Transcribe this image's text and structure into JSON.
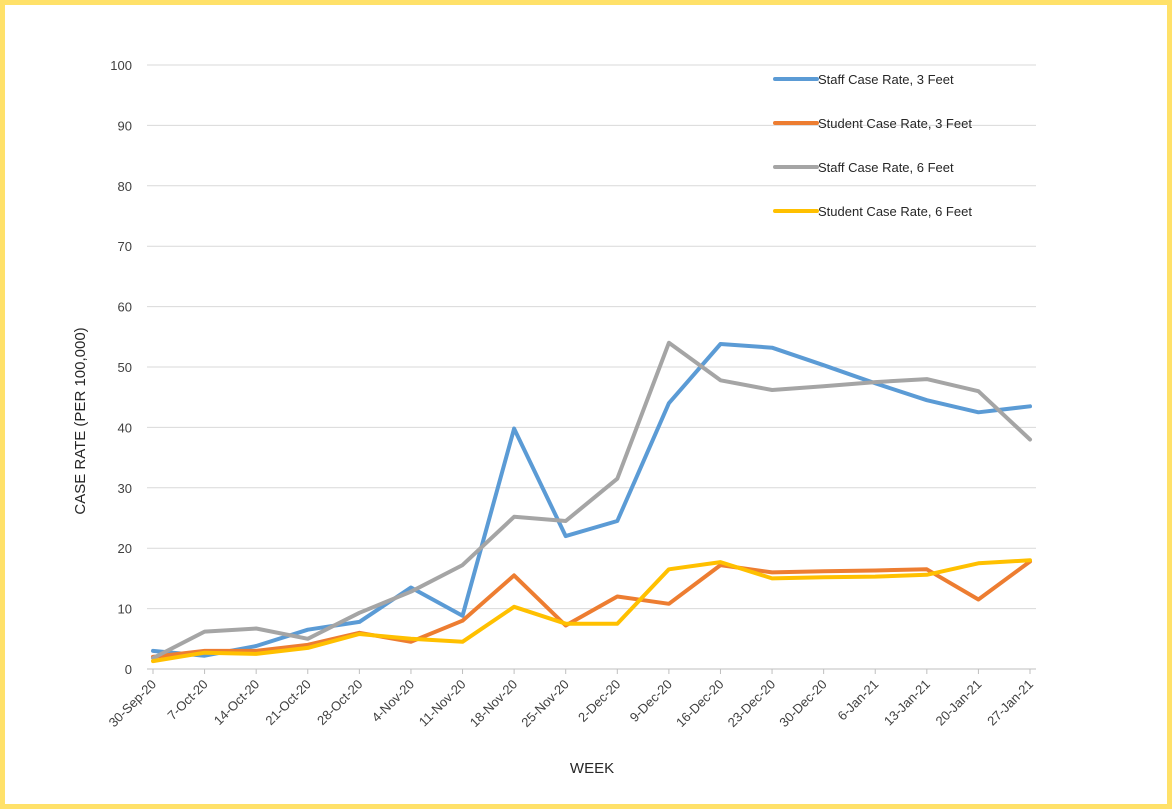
{
  "chart_data": {
    "type": "line",
    "title": "",
    "xlabel": "WEEK",
    "ylabel": "CASE RATE (PER 100,000)",
    "ylim": [
      0,
      100
    ],
    "yticks": [
      "0",
      "10",
      "20",
      "30",
      "40",
      "50",
      "60",
      "70",
      "80",
      "90",
      "100"
    ],
    "grid": true,
    "legend_position": "top-right",
    "categories": [
      "30-Sep-20",
      "7-Oct-20",
      "14-Oct-20",
      "21-Oct-20",
      "28-Oct-20",
      "4-Nov-20",
      "11-Nov-20",
      "18-Nov-20",
      "25-Nov-20",
      "2-Dec-20",
      "9-Dec-20",
      "16-Dec-20",
      "23-Dec-20",
      "30-Dec-20",
      "6-Jan-21",
      "13-Jan-21",
      "20-Jan-21",
      "27-Jan-21"
    ],
    "series": [
      {
        "name": "Staff Case Rate, 3 Feet",
        "color": "#5b9bd5",
        "values": [
          3.0,
          2.2,
          3.8,
          6.5,
          7.8,
          13.5,
          8.8,
          39.8,
          22.0,
          24.5,
          44.0,
          53.8,
          53.2,
          50.3,
          47.3,
          44.5,
          42.5,
          43.5
        ]
      },
      {
        "name": "Student Case Rate, 3 Feet",
        "color": "#ed7d31",
        "values": [
          2.0,
          3.0,
          3.0,
          4.0,
          6.0,
          4.5,
          8.0,
          15.5,
          7.2,
          12.0,
          10.8,
          17.2,
          16.0,
          16.2,
          16.3,
          16.5,
          11.5,
          17.8
        ]
      },
      {
        "name": "Staff Case Rate, 6 Feet",
        "color": "#a5a5a5",
        "values": [
          1.8,
          6.2,
          6.7,
          5.0,
          9.3,
          12.8,
          17.2,
          25.2,
          24.5,
          31.5,
          54.0,
          47.8,
          46.2,
          46.8,
          47.5,
          48.0,
          46.0,
          38.0
        ]
      },
      {
        "name": "Student Case Rate, 6 Feet",
        "color": "#ffc000",
        "values": [
          1.3,
          2.7,
          2.5,
          3.5,
          5.8,
          5.0,
          4.5,
          10.3,
          7.5,
          7.5,
          16.5,
          17.7,
          15.0,
          15.2,
          15.3,
          15.6,
          17.5,
          18.0
        ]
      }
    ]
  }
}
